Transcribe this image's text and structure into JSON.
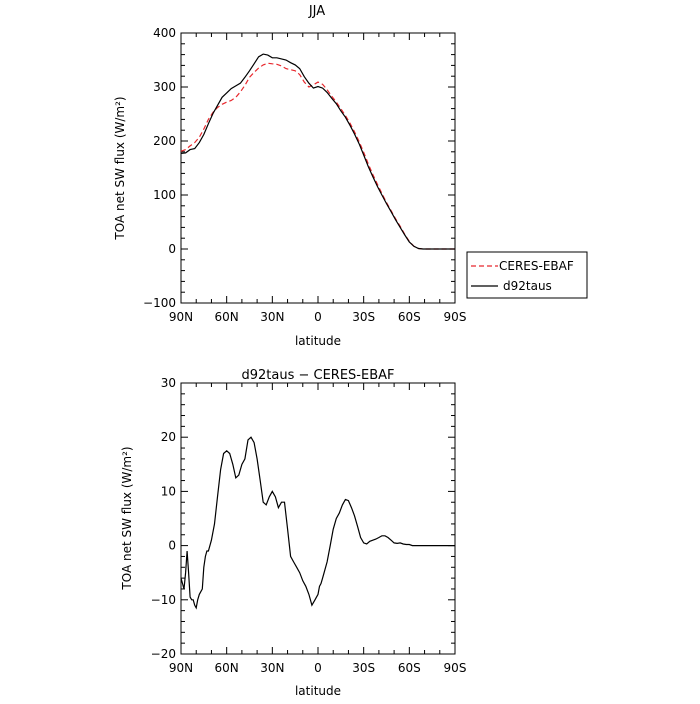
{
  "chart_data": [
    {
      "type": "line",
      "title": "JJA",
      "xlabel": "latitude",
      "ylabel": "TOA net SW flux (W/m²)",
      "xlim": [
        90,
        -90
      ],
      "ylim": [
        -100,
        400
      ],
      "xticks": [
        {
          "value": 90,
          "label": "90N"
        },
        {
          "value": 60,
          "label": "60N"
        },
        {
          "value": 30,
          "label": "30N"
        },
        {
          "value": 0,
          "label": "0"
        },
        {
          "value": -30,
          "label": "30S"
        },
        {
          "value": -60,
          "label": "60S"
        },
        {
          "value": -90,
          "label": "90S"
        }
      ],
      "yticks": [
        {
          "value": -100,
          "label": "−100"
        },
        {
          "value": 0,
          "label": "0"
        },
        {
          "value": 100,
          "label": "100"
        },
        {
          "value": 200,
          "label": "200"
        },
        {
          "value": 300,
          "label": "300"
        },
        {
          "value": 400,
          "label": "400"
        }
      ],
      "legend_position": "right-outside",
      "series": [
        {
          "name": "CERES-EBAF",
          "color": "#e8282d",
          "dash": "dashed",
          "x": [
            90,
            87,
            84,
            81,
            78,
            75,
            72,
            69,
            66,
            63,
            60,
            57,
            54,
            51,
            48,
            45,
            42,
            39,
            36,
            33,
            30,
            27,
            24,
            21,
            18,
            15,
            12,
            9,
            6,
            3,
            0,
            -3,
            -6,
            -9,
            -12,
            -15,
            -18,
            -21,
            -24,
            -27,
            -30,
            -33,
            -36,
            -39,
            -42,
            -45,
            -48,
            -51,
            -54,
            -57,
            -60,
            -63,
            -66,
            -69,
            -72,
            -75,
            -78,
            -81,
            -84,
            -87,
            -90
          ],
          "y": [
            181,
            184,
            191,
            197,
            207,
            222,
            240,
            253,
            262,
            268,
            272,
            275,
            281,
            291,
            303,
            318,
            327,
            335,
            341,
            344,
            343,
            342,
            339,
            334,
            332,
            330,
            323,
            309,
            300,
            304,
            309,
            305,
            295,
            283,
            272,
            260,
            247,
            233,
            217,
            199,
            179,
            158,
            138,
            120,
            103,
            86,
            71,
            56,
            42,
            27,
            14,
            5,
            1,
            0,
            0,
            0,
            0,
            0,
            0,
            0,
            0
          ]
        },
        {
          "name": "d92taus",
          "color": "#000000",
          "dash": "solid",
          "x": [
            90,
            87,
            84,
            81,
            78,
            75,
            72,
            69,
            66,
            63,
            60,
            57,
            54,
            51,
            48,
            45,
            42,
            39,
            36,
            33,
            30,
            27,
            24,
            21,
            18,
            15,
            12,
            9,
            6,
            3,
            0,
            -3,
            -6,
            -9,
            -12,
            -15,
            -18,
            -21,
            -24,
            -27,
            -30,
            -33,
            -36,
            -39,
            -42,
            -45,
            -48,
            -51,
            -54,
            -57,
            -60,
            -63,
            -66,
            -69,
            -72,
            -75,
            -78,
            -81,
            -84,
            -87,
            -90
          ],
          "y": [
            177,
            178,
            184,
            186,
            197,
            212,
            232,
            251,
            266,
            281,
            289,
            297,
            302,
            307,
            318,
            330,
            343,
            356,
            361,
            359,
            354,
            354,
            352,
            350,
            345,
            341,
            334,
            319,
            307,
            298,
            301,
            298,
            290,
            279,
            269,
            256,
            244,
            229,
            213,
            195,
            174,
            153,
            134,
            116,
            100,
            84,
            69,
            54,
            40,
            26,
            13,
            5,
            1,
            0,
            0,
            0,
            0,
            0,
            0,
            0,
            0
          ]
        }
      ]
    },
    {
      "type": "line",
      "title": "d92taus − CERES-EBAF",
      "xlabel": "latitude",
      "ylabel": "TOA net SW flux (W/m²)",
      "xlim": [
        90,
        -90
      ],
      "ylim": [
        -20,
        30
      ],
      "xticks": [
        {
          "value": 90,
          "label": "90N"
        },
        {
          "value": 60,
          "label": "60N"
        },
        {
          "value": 30,
          "label": "30N"
        },
        {
          "value": 0,
          "label": "0"
        },
        {
          "value": -30,
          "label": "30S"
        },
        {
          "value": -60,
          "label": "60S"
        },
        {
          "value": -90,
          "label": "90S"
        }
      ],
      "yticks": [
        {
          "value": -20,
          "label": "−20"
        },
        {
          "value": -10,
          "label": "−10"
        },
        {
          "value": 0,
          "label": "0"
        },
        {
          "value": 10,
          "label": "10"
        },
        {
          "value": 20,
          "label": "20"
        },
        {
          "value": 30,
          "label": "30"
        }
      ],
      "series": [
        {
          "name": "",
          "color": "#000000",
          "dash": "solid",
          "x": [
            90,
            89,
            88,
            87,
            86,
            85,
            84,
            83,
            82,
            81,
            80,
            79,
            78,
            77,
            76,
            75,
            74,
            73,
            72,
            70,
            68,
            66,
            64,
            62,
            60,
            58,
            56,
            54,
            52,
            50,
            48,
            46,
            44,
            42,
            40,
            38,
            36,
            34,
            32,
            30,
            28,
            26,
            24,
            22,
            20,
            18,
            16,
            14,
            12,
            10,
            8,
            6,
            4,
            2,
            1,
            0,
            -1,
            -2,
            -3,
            -4,
            -6,
            -8,
            -10,
            -12,
            -14,
            -16,
            -18,
            -20,
            -22,
            -24,
            -26,
            -28,
            -30,
            -32,
            -34,
            -36,
            -38,
            -40,
            -42,
            -44,
            -46,
            -48,
            -50,
            -52,
            -54,
            -56,
            -58,
            -60,
            -62,
            -64,
            -66,
            -68,
            -70,
            -72,
            -74,
            -76,
            -78,
            -80,
            -82,
            -84,
            -86,
            -88,
            -90
          ],
          "y": [
            -6,
            -7,
            -8,
            -5,
            -1,
            -5,
            -9.5,
            -10,
            -10,
            -11,
            -11.5,
            -10,
            -9,
            -8.5,
            -8,
            -4,
            -2,
            -1,
            -1,
            1,
            4,
            9,
            14,
            17,
            17.5,
            17,
            15,
            12.5,
            13,
            15,
            16,
            19.5,
            20,
            19,
            16,
            12,
            8,
            7.5,
            9,
            10,
            9,
            7,
            8,
            8,
            3,
            -2,
            -3,
            -4,
            -5,
            -6.5,
            -7.5,
            -9,
            -11,
            -10,
            -9.5,
            -9,
            -7.5,
            -7,
            -6,
            -5,
            -3,
            0,
            3,
            5,
            6,
            7.5,
            8.5,
            8.3,
            7,
            5.5,
            3.5,
            1.5,
            0.5,
            0.3,
            0.8,
            1,
            1.2,
            1.5,
            1.8,
            1.8,
            1.5,
            1,
            0.5,
            0.4,
            0.5,
            0.3,
            0.2,
            0.2,
            0,
            0,
            0,
            0,
            0,
            0,
            0,
            0,
            0,
            0,
            0,
            0,
            0,
            0,
            0
          ]
        }
      ]
    }
  ]
}
